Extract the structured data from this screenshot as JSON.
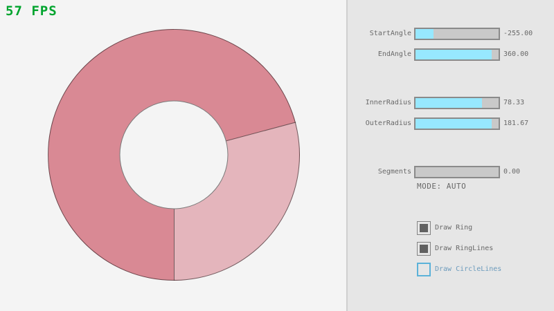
{
  "fps": {
    "text": "57 FPS",
    "color": "#00A42E"
  },
  "ring": {
    "start_angle": -255.0,
    "end_angle": 360.0,
    "inner_radius": 78.33,
    "outer_radius": 181.67,
    "segments": 0,
    "mode": "AUTO",
    "fill_color_overlap": "#D98994",
    "fill_color_single": "#E4B5BC",
    "outline_color": "rgba(0,0,0,0.5)",
    "single_pass_arc_conic_deg": [
      75,
      180
    ]
  },
  "panel": {
    "background": "#E6E6E6",
    "accent_fill": "#97E8FF",
    "sliders": [
      {
        "label": "StartAngle",
        "value": "-255.00",
        "fill_pct": 22
      },
      {
        "label": "EndAngle",
        "value": "360.00",
        "fill_pct": 92
      },
      {
        "label": "InnerRadius",
        "value": "78.33",
        "fill_pct": 80
      },
      {
        "label": "OuterRadius",
        "value": "181.67",
        "fill_pct": 92
      },
      {
        "label": "Segments",
        "value": "0.00",
        "fill_pct": 0
      }
    ],
    "mode_text": "MODE: AUTO",
    "checkboxes": [
      {
        "label": "Draw Ring",
        "checked": true,
        "accent": "#686868"
      },
      {
        "label": "Draw RingLines",
        "checked": true,
        "accent": "#686868"
      },
      {
        "label": "Draw CircleLines",
        "checked": false,
        "accent": "#5BB2D9"
      }
    ]
  }
}
